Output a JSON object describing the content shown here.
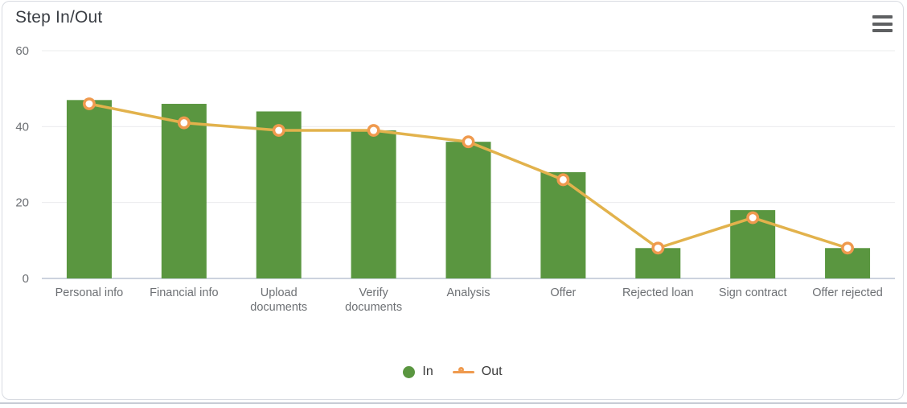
{
  "card": {
    "menu_icon": "hamburger-menu"
  },
  "chart_data": {
    "type": "bar",
    "title": "Step In/Out",
    "categories": [
      "Personal info",
      "Financial info",
      "Upload documents",
      "Verify documents",
      "Analysis",
      "Offer",
      "Rejected loan",
      "Sign contract",
      "Offer rejected"
    ],
    "series": [
      {
        "name": "In",
        "type": "column",
        "color": "#5a9640",
        "values": [
          47,
          46,
          44,
          39,
          36,
          28,
          8,
          18,
          8
        ]
      },
      {
        "name": "Out",
        "type": "line",
        "color": "#e2b24c",
        "marker_fill": "#ffffff",
        "marker_stroke": "#ef9a4e",
        "values": [
          46,
          41,
          39,
          39,
          36,
          26,
          8,
          16,
          8
        ]
      }
    ],
    "yaxis": {
      "min": 0,
      "max": 60,
      "ticks": [
        0,
        20,
        40,
        60
      ]
    },
    "grid": true,
    "legend_position": "bottom"
  },
  "colors": {
    "grid_line": "#ebecee",
    "axis_line": "#ccd2de",
    "axis_label": "#6d7074",
    "title": "#3a3e44",
    "legend_text": "#3b3b3b",
    "menu_icon": "#5e6062",
    "card_border": "#d8dbe1",
    "bottom_rule": "#c7ccd5"
  }
}
